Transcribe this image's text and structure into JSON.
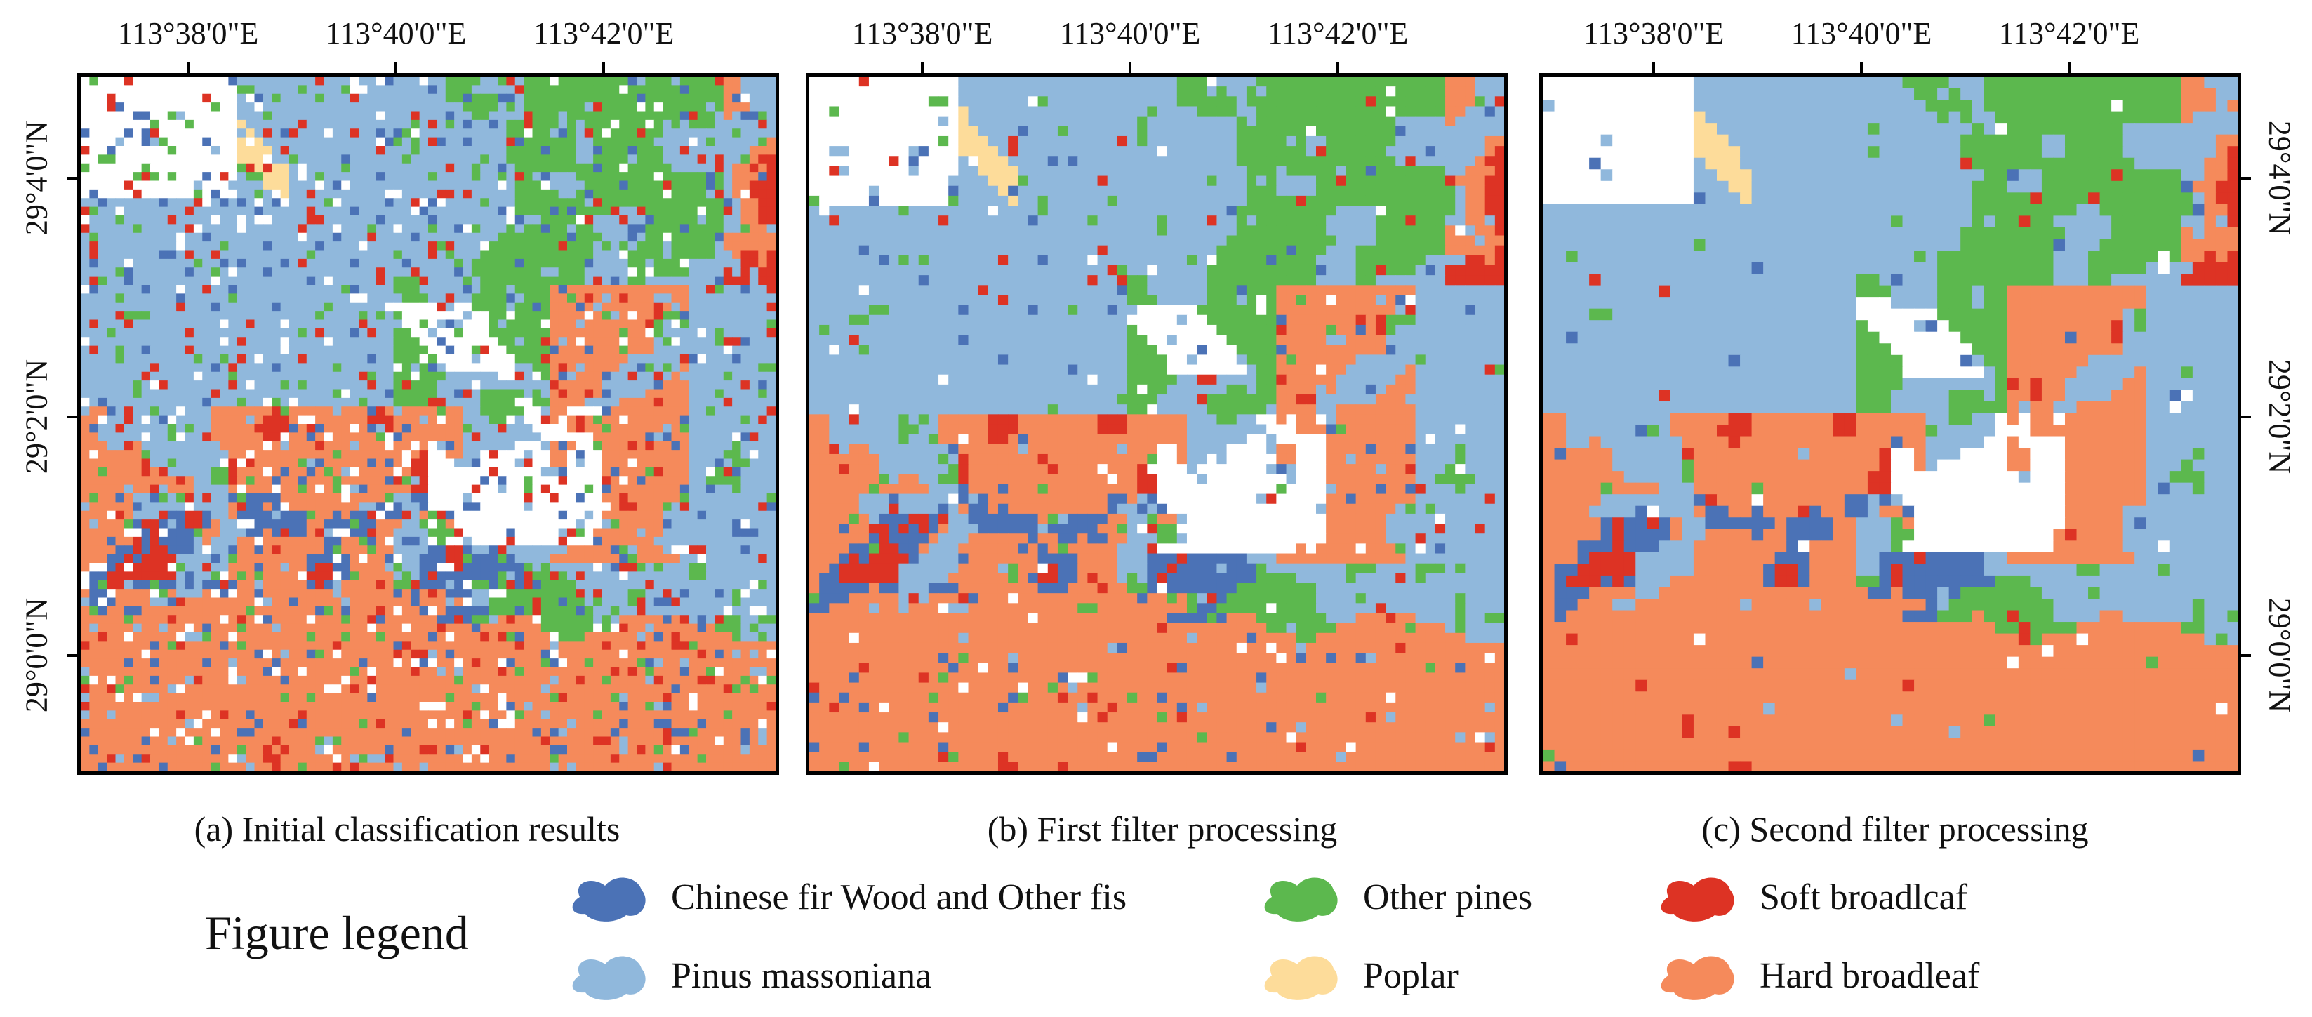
{
  "panels": [
    {
      "id": "a",
      "caption": "(a) Initial classification results"
    },
    {
      "id": "b",
      "caption": "(b) First filter processing"
    },
    {
      "id": "c",
      "caption": "(c) Second filter processing"
    }
  ],
  "lon_labels": [
    "113°38'0\"E",
    "113°40'0\"E",
    "113°42'0\"E"
  ],
  "lat_labels": [
    "29°4'0\"N",
    "29°2'0\"N",
    "29°0'0\"N"
  ],
  "legend": {
    "title": "Figure legend",
    "items": [
      {
        "label": "Chinese fir Wood and Other fis",
        "color": "#4b72b6",
        "icon": "chinese-fir-swatch-icon"
      },
      {
        "label": "Pinus massoniana",
        "color": "#90b8dc",
        "icon": "pinus-massoniana-swatch-icon"
      },
      {
        "label": "Other pines",
        "color": "#5cb84e",
        "icon": "other-pines-swatch-icon"
      },
      {
        "label": "Poplar",
        "color": "#fddc9a",
        "icon": "poplar-swatch-icon"
      },
      {
        "label": "Soft broadlcaf",
        "color": "#dd3324",
        "icon": "soft-broadleaf-swatch-icon"
      },
      {
        "label": "Hard broadleaf",
        "color": "#f58a5b",
        "icon": "hard-broadleaf-swatch-icon"
      }
    ]
  }
}
